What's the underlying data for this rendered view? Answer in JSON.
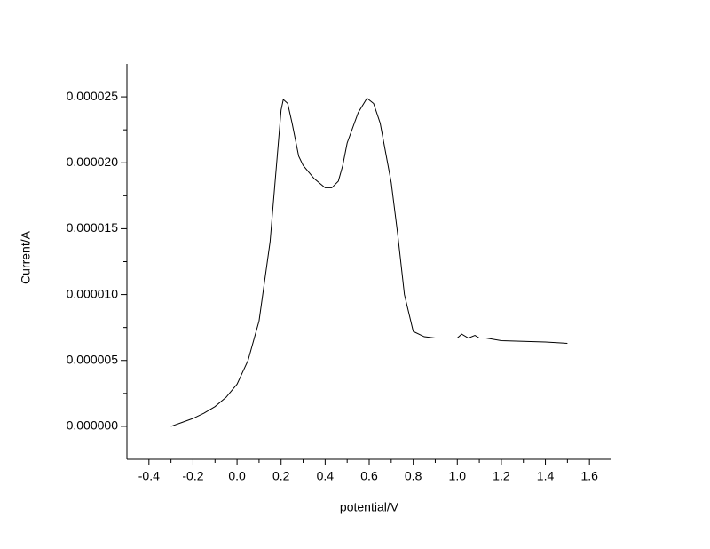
{
  "chart_data": {
    "type": "line",
    "x_label": "potential/V",
    "y_label": "Current/A",
    "xlim": [
      -0.5,
      1.7
    ],
    "ylim": [
      -2.5e-06,
      2.75e-05
    ],
    "xticks": [
      -0.4,
      -0.2,
      {
        "value": 0,
        "label": "0.0"
      },
      0.2,
      0.4,
      0.6,
      0.8,
      {
        "value": 1,
        "label": "1.0"
      },
      1.2,
      1.4,
      1.6
    ],
    "yticks": [
      {
        "value": 0,
        "label": "0.000000"
      },
      {
        "value": 5e-06,
        "label": "0.000005"
      },
      {
        "value": 1e-05,
        "label": "0.000010"
      },
      {
        "value": 1.5e-05,
        "label": "0.000015"
      },
      {
        "value": 2e-05,
        "label": "0.000020"
      },
      {
        "value": 2.5e-05,
        "label": "0.000025"
      }
    ],
    "color": "#000000",
    "x": [
      -0.3,
      -0.25,
      -0.2,
      -0.15,
      -0.1,
      -0.05,
      0.0,
      0.05,
      0.1,
      0.15,
      0.18,
      0.2,
      0.21,
      0.23,
      0.25,
      0.28,
      0.3,
      0.35,
      0.4,
      0.43,
      0.46,
      0.48,
      0.5,
      0.55,
      0.59,
      0.62,
      0.65,
      0.7,
      0.73,
      0.76,
      0.8,
      0.85,
      0.9,
      0.95,
      1.0,
      1.02,
      1.05,
      1.08,
      1.1,
      1.13,
      1.2,
      1.3,
      1.4,
      1.5
    ],
    "values": [
      0.0,
      3e-07,
      6e-07,
      1e-06,
      1.5e-06,
      2.2e-06,
      3.2e-06,
      5e-06,
      8e-06,
      1.4e-05,
      2e-05,
      2.4e-05,
      2.48e-05,
      2.45e-05,
      2.3e-05,
      2.05e-05,
      1.98e-05,
      1.88e-05,
      1.81e-05,
      1.81e-05,
      1.86e-05,
      1.98e-05,
      2.15e-05,
      2.38e-05,
      2.49e-05,
      2.45e-05,
      2.3e-05,
      1.85e-05,
      1.45e-05,
      1e-05,
      7.2e-06,
      6.8e-06,
      6.7e-06,
      6.7e-06,
      6.7e-06,
      7e-06,
      6.7e-06,
      6.9e-06,
      6.7e-06,
      6.7e-06,
      6.5e-06,
      6.45e-06,
      6.4e-06,
      6.3e-06
    ]
  }
}
